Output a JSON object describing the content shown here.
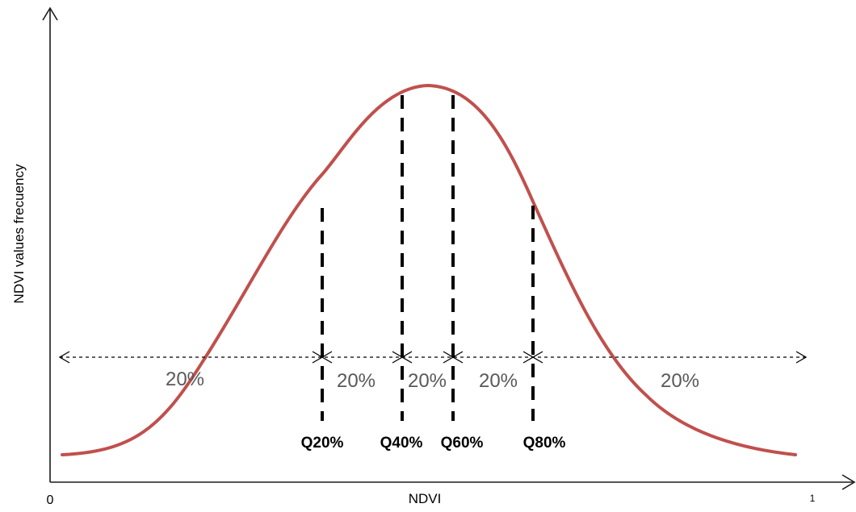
{
  "colors": {
    "curve": "#c0504d",
    "lines": "#000000",
    "segment_text": "#595959"
  },
  "axes": {
    "x_title": "NDVI",
    "y_title": "NDVI values frecuency",
    "x_min_label": "0",
    "x_max_label": "1"
  },
  "quantiles": [
    {
      "label": "Q20%"
    },
    {
      "label": "Q40%"
    },
    {
      "label": "Q60%"
    },
    {
      "label": "Q80%"
    }
  ],
  "segments": [
    {
      "label": "20%"
    },
    {
      "label": "20%"
    },
    {
      "label": "20%"
    },
    {
      "label": "20%"
    },
    {
      "label": "20%"
    }
  ]
}
